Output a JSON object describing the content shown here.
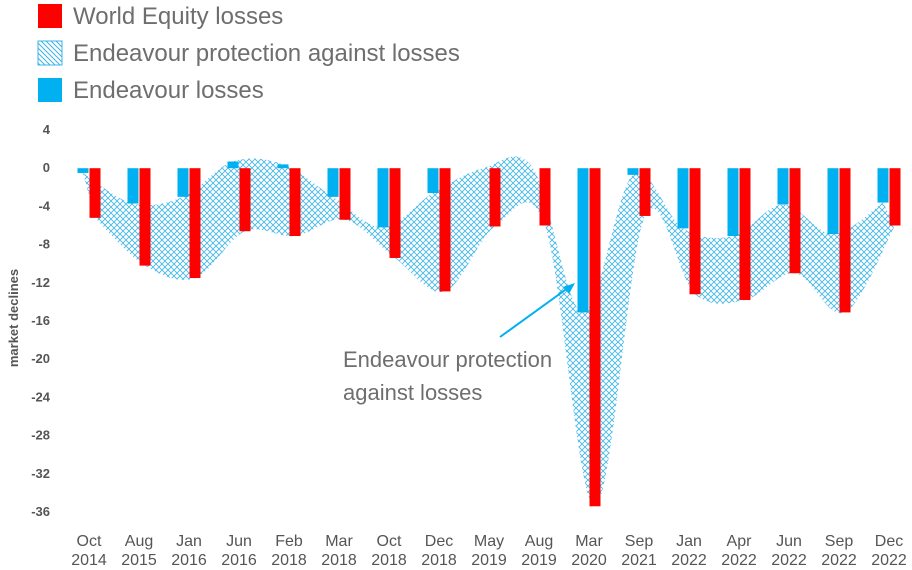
{
  "chart_data": {
    "type": "bar",
    "ylabel": "market declines",
    "ylim": [
      -36,
      4
    ],
    "yticks": [
      4,
      0,
      -4,
      -8,
      -12,
      -16,
      -20,
      -24,
      -28,
      -32,
      -36
    ],
    "grid": false,
    "legend_position": "top-left",
    "categories": [
      [
        "Oct",
        "2014"
      ],
      [
        "Aug",
        "2015"
      ],
      [
        "Jan",
        "2016"
      ],
      [
        "Jun",
        "2016"
      ],
      [
        "Feb",
        "2018"
      ],
      [
        "Mar",
        "2018"
      ],
      [
        "Oct",
        "2018"
      ],
      [
        "Dec",
        "2018"
      ],
      [
        "May",
        "2019"
      ],
      [
        "Aug",
        "2019"
      ],
      [
        "Mar",
        "2020"
      ],
      [
        "Sep",
        "2021"
      ],
      [
        "Jan",
        "2022"
      ],
      [
        "Apr",
        "2022"
      ],
      [
        "Jun",
        "2022"
      ],
      [
        "Sep",
        "2022"
      ],
      [
        "Dec",
        "2022"
      ]
    ],
    "series": [
      {
        "name": "World Equity losses",
        "color": "#ff0000",
        "values": [
          -5.2,
          -10.2,
          -11.5,
          -6.6,
          -7.1,
          -5.4,
          -9.4,
          -12.9,
          -6.1,
          -6.0,
          -35.4,
          -5.0,
          -13.2,
          -13.8,
          -11.0,
          -15.1,
          -6.0
        ]
      },
      {
        "name": "Endeavour losses",
        "color": "#00b0f0",
        "values": [
          -0.5,
          -3.7,
          -3.0,
          0.7,
          0.4,
          -3.0,
          -6.2,
          -2.6,
          0.0,
          0.0,
          -15.1,
          -0.7,
          -6.3,
          -7.1,
          -3.8,
          -6.9,
          -3.6
        ]
      }
    ],
    "shaded_area": {
      "name": "Endeavour protection against losses",
      "color": "#00b0f0",
      "pattern": "crosshatch"
    },
    "legend": [
      {
        "label": "World Equity losses",
        "swatch": "solid-red"
      },
      {
        "label": "Endeavour protection against losses",
        "swatch": "hatched-blue"
      },
      {
        "label": "Endeavour losses",
        "swatch": "solid-blue"
      }
    ],
    "annotation": {
      "lines": [
        "Endeavour protection",
        "against losses"
      ],
      "arrow": true
    }
  }
}
